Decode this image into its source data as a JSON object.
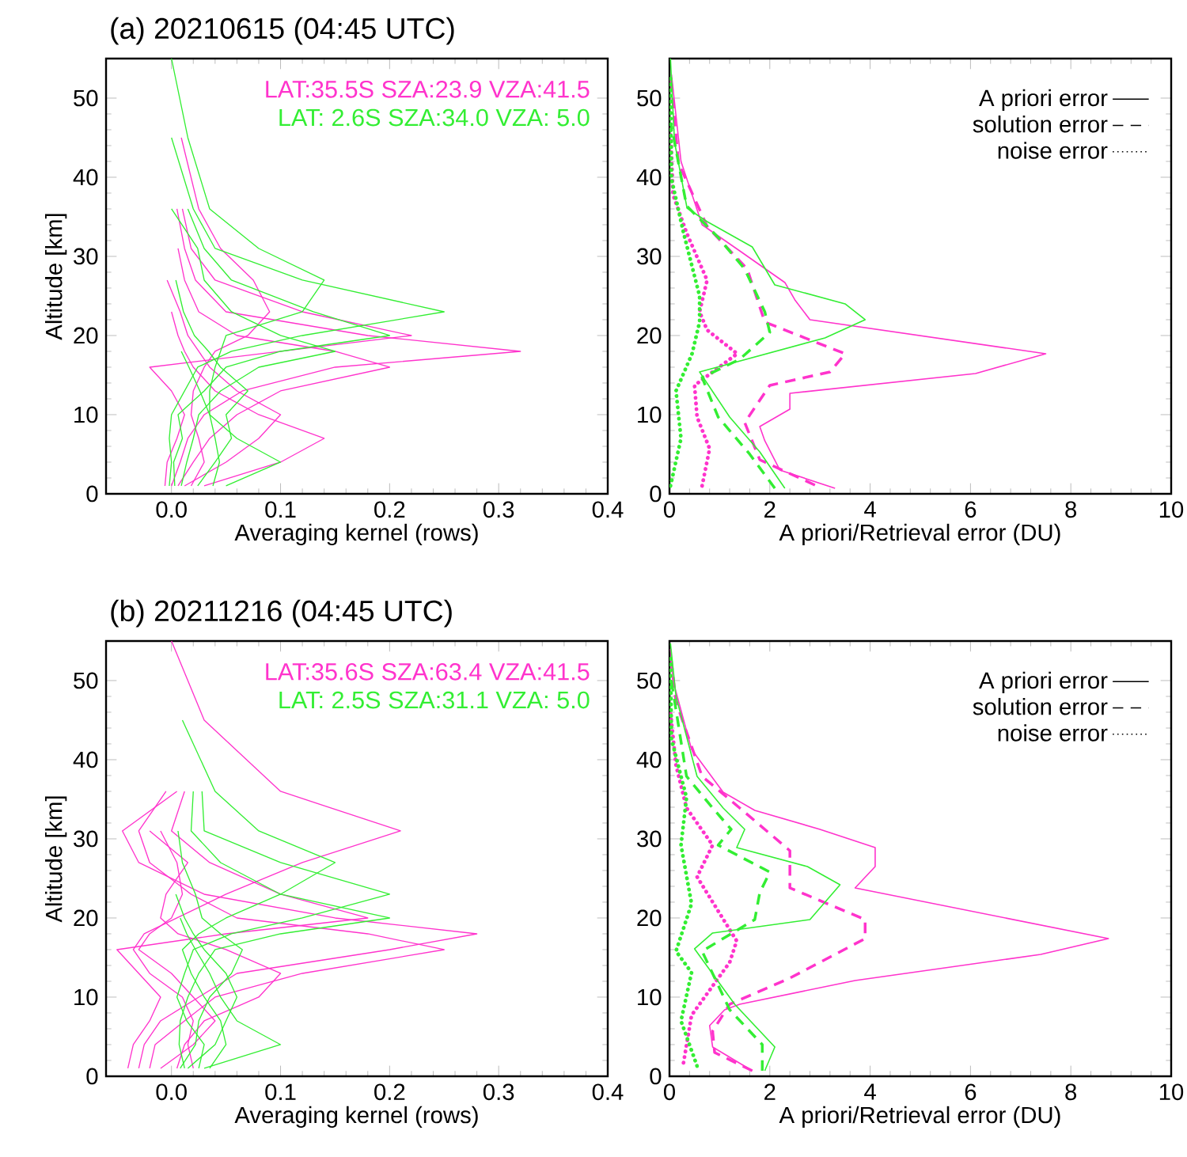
{
  "chart_data": [
    {
      "type": "line",
      "title": "(a) 20210615 (04:45 UTC)",
      "xlabel": "Averaging kernel (rows)",
      "ylabel": "Altitude [km]",
      "xlim": [
        -0.06,
        0.4
      ],
      "ylim": [
        0,
        55
      ],
      "xticks": [
        {
          "value": 0,
          "label": "0.0"
        },
        0.1,
        0.2,
        0.3,
        0.4
      ],
      "yticks": [
        0,
        10,
        20,
        30,
        40,
        50
      ],
      "series": [
        {
          "name": "LAT:35.5S SZA:23.9 VZA:41.5",
          "color": "#ff33cc",
          "x": [
            0.03,
            0.1,
            0.14,
            0.08,
            0.04,
            0.02,
            0.012,
            0.006,
            0.0
          ],
          "values": [
            1,
            4,
            7,
            10,
            13,
            16,
            18,
            20,
            23
          ]
        },
        {
          "color": "#ff33cc",
          "x": [
            0.012,
            0.05,
            0.08,
            0.1,
            0.06,
            0.035,
            0.025,
            0.015,
            0.008,
            -0.004
          ],
          "values": [
            1,
            4,
            7,
            10,
            13,
            16,
            18,
            20,
            23,
            27
          ]
        },
        {
          "color": "#ff33cc",
          "x": [
            0.006,
            0.02,
            0.035,
            0.06,
            0.1,
            0.2,
            0.15,
            0.06,
            0.025,
            0.012,
            0.006
          ],
          "values": [
            1,
            4,
            7,
            10,
            13,
            16,
            18,
            20,
            23,
            27,
            31
          ]
        },
        {
          "color": "#ff33cc",
          "x": [
            0.0,
            0.008,
            0.015,
            0.03,
            0.065,
            0.15,
            0.32,
            0.18,
            0.05,
            0.022,
            0.012,
            0.005
          ],
          "values": [
            1,
            4,
            7,
            10,
            13,
            16,
            18,
            20,
            23,
            27,
            31,
            36
          ]
        },
        {
          "color": "#ff33cc",
          "x": [
            -0.006,
            -0.004,
            0.005,
            0.012,
            0.0,
            -0.02,
            0.1,
            0.22,
            0.12,
            0.04,
            0.018,
            0.01
          ],
          "values": [
            1,
            4,
            7,
            10,
            13,
            16,
            18,
            20,
            23,
            27,
            31,
            36
          ]
        },
        {
          "color": "#ff33cc",
          "x": [
            0.018,
            0.03,
            0.025,
            0.018,
            0.02,
            0.03,
            0.04,
            0.07,
            0.09,
            0.075,
            0.045,
            0.025,
            0.009
          ],
          "values": [
            1,
            4,
            7,
            10,
            13,
            16,
            18,
            20,
            23,
            27,
            31,
            36,
            45
          ]
        },
        {
          "name": "LAT: 2.6S SZA:34.0 VZA: 5.0",
          "color": "#33ee33",
          "x": [
            0.05,
            0.1,
            0.06,
            0.035,
            0.026,
            0.016,
            0.009
          ],
          "values": [
            1,
            4,
            7,
            10,
            13,
            16,
            18
          ]
        },
        {
          "color": "#33ee33",
          "x": [
            0.024,
            0.04,
            0.055,
            0.05,
            0.07,
            0.045,
            0.034,
            0.021,
            0.011,
            0.004
          ],
          "values": [
            1,
            4,
            7,
            10,
            13,
            16,
            18,
            20,
            23,
            27
          ]
        },
        {
          "color": "#33ee33",
          "x": [
            0.009,
            0.014,
            0.02,
            0.025,
            0.045,
            0.08,
            0.15,
            0.1,
            0.055,
            0.03,
            0.024,
            0.0
          ],
          "values": [
            1,
            4,
            7,
            10,
            13,
            16,
            18,
            20,
            23,
            27,
            31,
            36
          ]
        },
        {
          "color": "#33ee33",
          "x": [
            0.003,
            0.002,
            0.01,
            0.006,
            0.03,
            0.05,
            0.1,
            0.2,
            0.13,
            0.055,
            0.03,
            0.015
          ],
          "values": [
            1,
            4,
            7,
            10,
            13,
            16,
            18,
            20,
            23,
            27,
            31,
            36
          ]
        },
        {
          "color": "#33ee33",
          "x": [
            -0.002,
            0.0,
            -0.002,
            0.0,
            0.012,
            0.024,
            0.055,
            0.12,
            0.25,
            0.12,
            0.04,
            0.02,
            0.0
          ],
          "values": [
            1,
            4,
            7,
            10,
            13,
            16,
            18,
            20,
            23,
            27,
            31,
            36,
            45
          ]
        },
        {
          "color": "#33ee33",
          "x": [
            0.038,
            0.044,
            0.04,
            0.035,
            0.035,
            0.04,
            0.045,
            0.05,
            0.12,
            0.14,
            0.08,
            0.035,
            0.015,
            0.0
          ],
          "values": [
            1,
            4,
            7,
            10,
            13,
            16,
            18,
            20,
            23,
            27,
            31,
            36,
            45,
            55
          ]
        }
      ]
    },
    {
      "type": "line",
      "xlabel": "A priori/Retrieval error (DU)",
      "xlim": [
        0,
        10
      ],
      "ylim": [
        0,
        55
      ],
      "xticks": [
        0,
        2,
        4,
        6,
        8,
        10
      ],
      "yticks": [
        0,
        10,
        20,
        30,
        40,
        50
      ],
      "legend": "top right",
      "series": [
        {
          "name": "A priori error",
          "color": "#ff33cc",
          "line_style": "solid",
          "x": [
            3.3,
            2.2,
            1.9,
            1.8,
            2.4,
            2.4,
            6.1,
            7.5,
            2.8,
            2.5,
            2.3,
            1.4,
            0.65,
            0.23,
            0.04
          ],
          "values": [
            0.7,
            3,
            6.7,
            8.5,
            10.7,
            12.7,
            15.2,
            17.7,
            22,
            24.5,
            26.7,
            30.7,
            34,
            42,
            53
          ]
        },
        {
          "name": "solution error",
          "color": "#ff33cc",
          "line_style": "dashed",
          "x": [
            2.9,
            1.8,
            1.5,
            2.0,
            3.2,
            3.5,
            1.9,
            1.55,
            0.75,
            0.18,
            0.02
          ],
          "values": [
            1.1,
            4.3,
            9,
            13.7,
            15.4,
            17.7,
            21.7,
            28.4,
            33.8,
            41.8,
            53
          ]
        },
        {
          "name": "noise error",
          "color": "#ff33cc",
          "line_style": "dotted",
          "x": [
            0.65,
            0.8,
            0.55,
            0.5,
            1.35,
            0.75,
            0.6,
            0.75,
            0.34,
            0.07,
            0.02
          ],
          "values": [
            1,
            5.7,
            9.7,
            13.7,
            17.7,
            20.7,
            23,
            27,
            33,
            37.8,
            46.5
          ]
        },
        {
          "color": "#33ee33",
          "line_style": "solid",
          "x": [
            2.3,
            1.8,
            1.2,
            0.6,
            3.1,
            3.9,
            3.5,
            2.1,
            1.65,
            0.75,
            0.35,
            0.1,
            0.02
          ],
          "values": [
            0.7,
            5.3,
            9.7,
            15.4,
            19.7,
            22,
            24,
            26.4,
            31.2,
            34.4,
            36.1,
            44.5,
            55
          ]
        },
        {
          "color": "#33ee33",
          "line_style": "dashed",
          "x": [
            2.1,
            1.6,
            0.97,
            0.65,
            1.4,
            2.0,
            1.9,
            1.5,
            0.97,
            0.34,
            0.04
          ],
          "values": [
            0.7,
            5,
            9.7,
            14.7,
            17,
            20.4,
            23,
            28.4,
            32.4,
            36.4,
            46.5
          ]
        },
        {
          "color": "#33ee33",
          "line_style": "dotted",
          "x": [
            0.02,
            0.23,
            0.13,
            0.45,
            0.6,
            0.6,
            0.28,
            0.04,
            0.02
          ],
          "values": [
            1,
            7,
            13,
            17.7,
            21.7,
            25,
            33,
            39.8,
            53
          ]
        }
      ]
    },
    {
      "type": "line",
      "title": "(b) 20211216 (04:45 UTC)",
      "xlabel": "Averaging kernel (rows)",
      "ylabel": "Altitude [km]",
      "xlim": [
        -0.06,
        0.4
      ],
      "ylim": [
        0,
        55
      ],
      "xticks": [
        {
          "value": 0,
          "label": "0.0"
        },
        0.1,
        0.2,
        0.3,
        0.4
      ],
      "yticks": [
        0,
        10,
        20,
        30,
        40,
        50
      ],
      "series": [
        {
          "name": "LAT:35.6S SZA:63.4 VZA:41.5",
          "color": "#ff33cc",
          "x": [
            -0.01,
            0.02,
            0.04,
            0.02,
            0.0,
            -0.03,
            -0.02,
            0.0,
            0.01,
            0.005,
            -0.01
          ],
          "values": [
            1,
            4,
            7,
            10,
            13,
            16,
            18,
            20,
            23,
            27,
            31
          ]
        },
        {
          "color": "#ff33cc",
          "x": [
            0.005,
            0.012,
            0.03,
            0.08,
            0.1,
            0.05,
            0.006,
            -0.01,
            -0.005,
            0.015,
            -0.02
          ],
          "values": [
            1,
            4,
            7,
            10,
            13,
            16,
            18,
            20,
            23,
            27,
            31
          ]
        },
        {
          "color": "#ff33cc",
          "x": [
            -0.02,
            -0.015,
            0.012,
            0.04,
            0.12,
            0.25,
            0.18,
            0.06,
            0.018,
            -0.02,
            -0.03,
            -0.005
          ],
          "values": [
            1,
            4,
            7,
            10,
            13,
            16,
            18,
            20,
            23,
            27,
            31,
            36
          ]
        },
        {
          "color": "#ff33cc",
          "x": [
            -0.03,
            -0.025,
            -0.01,
            0.025,
            0.06,
            0.2,
            0.28,
            0.15,
            0.03,
            -0.03,
            -0.045,
            0.005
          ],
          "values": [
            1,
            4,
            7,
            10,
            13,
            16,
            18,
            20,
            23,
            27,
            31,
            36
          ]
        },
        {
          "color": "#ff33cc",
          "x": [
            -0.04,
            -0.035,
            -0.02,
            -0.01,
            -0.03,
            -0.05,
            0.05,
            0.18,
            0.1,
            0.035,
            0.0,
            0.012
          ],
          "values": [
            1,
            4,
            7,
            10,
            13,
            16,
            18,
            20,
            23,
            27,
            31,
            36
          ]
        },
        {
          "color": "#ff33cc",
          "x": [
            0.02,
            0.015,
            0.02,
            0.01,
            -0.02,
            -0.035,
            -0.025,
            0.005,
            0.05,
            0.12,
            0.21,
            0.1,
            0.03,
            0.0
          ],
          "values": [
            1,
            4,
            7,
            10,
            13,
            16,
            18,
            20,
            23,
            27,
            31,
            36,
            45,
            55
          ]
        },
        {
          "name": "LAT: 2.5S SZA:31.1 VZA: 5.0",
          "color": "#33ee33",
          "x": [
            0.03,
            0.1,
            0.06,
            0.045,
            0.035,
            0.022,
            0.014,
            0.008
          ],
          "values": [
            1,
            4,
            7,
            10,
            13,
            16,
            18,
            20
          ]
        },
        {
          "color": "#33ee33",
          "x": [
            0.015,
            0.04,
            0.05,
            0.06,
            0.05,
            0.03,
            0.02,
            0.012,
            0.004
          ],
          "values": [
            1,
            4,
            7,
            10,
            13,
            16,
            18,
            20,
            23
          ]
        },
        {
          "color": "#33ee33",
          "x": [
            0.008,
            0.022,
            0.025,
            0.035,
            0.055,
            0.065,
            0.045,
            0.028,
            0.022,
            0.01,
            0.006
          ],
          "values": [
            1,
            4,
            7,
            10,
            13,
            16,
            18,
            20,
            23,
            27,
            31
          ]
        },
        {
          "color": "#33ee33",
          "x": [
            0.012,
            0.007,
            0.008,
            0.015,
            0.025,
            0.04,
            0.1,
            0.2,
            0.1,
            0.045,
            0.018,
            0.02
          ],
          "values": [
            1,
            4,
            7,
            10,
            13,
            16,
            18,
            20,
            23,
            27,
            31,
            36
          ]
        },
        {
          "color": "#33ee33",
          "x": [
            0.025,
            0.03,
            0.014,
            0.005,
            0.012,
            0.02,
            0.055,
            0.12,
            0.2,
            0.1,
            0.03,
            0.028
          ],
          "values": [
            1,
            4,
            7,
            10,
            13,
            16,
            18,
            20,
            23,
            27,
            31,
            36
          ]
        },
        {
          "color": "#33ee33",
          "x": [
            0.035,
            0.05,
            0.045,
            0.03,
            0.018,
            0.01,
            0.025,
            0.05,
            0.1,
            0.15,
            0.08,
            0.04,
            0.01
          ],
          "values": [
            1,
            4,
            7,
            10,
            13,
            16,
            18,
            20,
            23,
            27,
            31,
            36,
            45
          ]
        }
      ]
    },
    {
      "type": "line",
      "xlabel": "A priori/Retrieval error (DU)",
      "xlim": [
        0,
        10
      ],
      "ylim": [
        0,
        55
      ],
      "xticks": [
        0,
        2,
        4,
        6,
        8,
        10
      ],
      "yticks": [
        0,
        10,
        20,
        30,
        40,
        50
      ],
      "legend": "top right",
      "series": [
        {
          "name": "A priori error",
          "color": "#ff33cc",
          "line_style": "solid",
          "x": [
            1.65,
            0.86,
            0.8,
            1.1,
            1.4,
            3.7,
            7.4,
            8.75,
            3.7,
            4.1,
            4.1,
            3.0,
            1.7,
            1.07,
            0.44,
            0.07,
            0.02
          ],
          "values": [
            0.7,
            3.7,
            6.4,
            8.4,
            9.1,
            12.1,
            15.4,
            17.4,
            23.8,
            26.5,
            28.9,
            31.2,
            33.6,
            35.9,
            41.3,
            50,
            54
          ]
        },
        {
          "name": "solution error",
          "color": "#ff33cc",
          "line_style": "dashed",
          "x": [
            1.65,
            0.9,
            0.86,
            1.2,
            2.4,
            3.9,
            3.9,
            2.4,
            2.4,
            1.4,
            0.65,
            0.13,
            0.02
          ],
          "values": [
            0.7,
            3.0,
            5.7,
            9.1,
            12.4,
            17.4,
            19.8,
            23.8,
            28.5,
            33.9,
            37.9,
            47.3,
            53.4
          ]
        },
        {
          "name": "noise error",
          "color": "#ff33cc",
          "line_style": "dotted",
          "x": [
            0.28,
            0.44,
            1.2,
            1.34,
            0.55,
            0.86,
            0.34,
            0.13,
            0.02
          ],
          "values": [
            1.7,
            7.7,
            14.4,
            17.1,
            25.2,
            29.2,
            33.9,
            39.3,
            46
          ]
        },
        {
          "color": "#33ee33",
          "line_style": "solid",
          "x": [
            1.9,
            2.1,
            1.3,
            0.5,
            0.86,
            2.8,
            3.4,
            2.75,
            1.34,
            1.5,
            1.07,
            0.55,
            0.13,
            0.02
          ],
          "values": [
            0.7,
            3.7,
            9.1,
            16.1,
            18.1,
            19.8,
            24.2,
            26.5,
            28.9,
            31.2,
            33.9,
            37.9,
            48,
            54.7
          ]
        },
        {
          "color": "#33ee33",
          "line_style": "dashed",
          "x": [
            1.85,
            1.85,
            1.2,
            0.65,
            1.7,
            1.8,
            2.0,
            0.97,
            1.23,
            0.86,
            0.34,
            0.02
          ],
          "values": [
            0.7,
            4,
            8.4,
            15.8,
            19.8,
            23.2,
            25.8,
            29.2,
            31.2,
            33.9,
            37.9,
            50.7
          ]
        },
        {
          "color": "#33ee33",
          "line_style": "dotted",
          "x": [
            0.55,
            0.23,
            0.44,
            0.13,
            0.44,
            0.23,
            0.34,
            0.04,
            0.02
          ],
          "values": [
            1.3,
            7,
            13.1,
            15.8,
            21.8,
            29.2,
            35.2,
            42.6,
            53.4
          ]
        }
      ]
    }
  ]
}
